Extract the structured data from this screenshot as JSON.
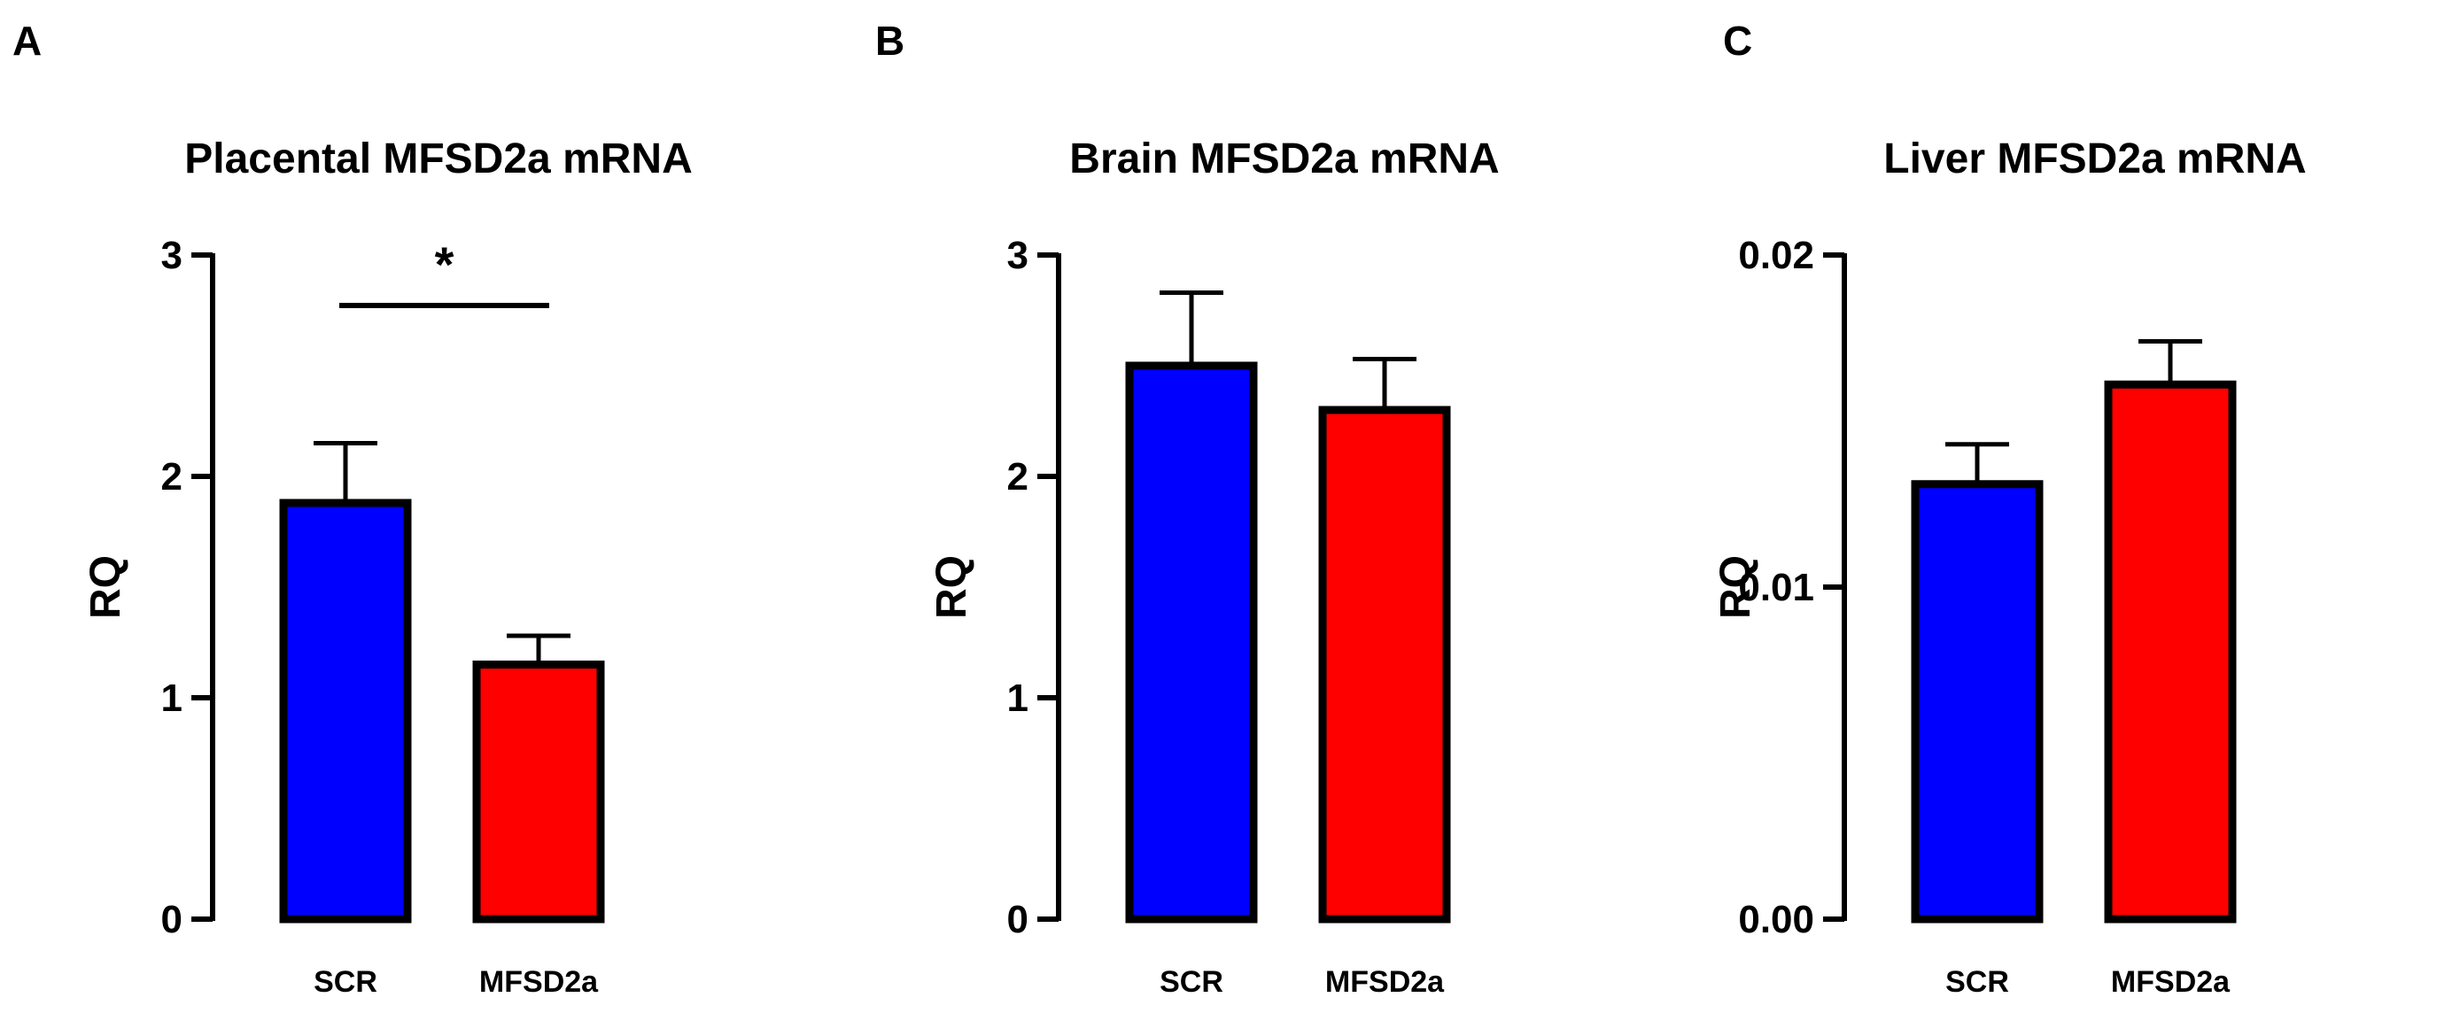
{
  "chart_data": [
    {
      "type": "bar",
      "panel": "A",
      "title": "Placental MFSD2a mRNA",
      "ylabel": "RQ",
      "xlabel": "",
      "categories": [
        "SCR",
        "MFSD2a"
      ],
      "values": [
        1.88,
        1.15
      ],
      "errors": [
        0.27,
        0.13
      ],
      "colors": [
        "#0000ff",
        "#ff0000"
      ],
      "ylim": [
        0,
        3
      ],
      "yticks": [
        0,
        1,
        2,
        3
      ],
      "ytick_labels": [
        "0",
        "1",
        "2",
        "3"
      ],
      "significance": [
        {
          "between": [
            0,
            1
          ],
          "label": "*"
        }
      ]
    },
    {
      "type": "bar",
      "panel": "B",
      "title": "Brain MFSD2a mRNA",
      "ylabel": "RQ",
      "xlabel": "",
      "categories": [
        "SCR",
        "MFSD2a"
      ],
      "values": [
        2.5,
        2.3
      ],
      "errors": [
        0.33,
        0.23
      ],
      "colors": [
        "#0000ff",
        "#ff0000"
      ],
      "ylim": [
        0,
        3
      ],
      "yticks": [
        0,
        1,
        2,
        3
      ],
      "ytick_labels": [
        "0",
        "1",
        "2",
        "3"
      ],
      "significance": []
    },
    {
      "type": "bar",
      "panel": "C",
      "title": "Liver MFSD2a mRNA",
      "ylabel": "RQ",
      "xlabel": "",
      "categories": [
        "SCR",
        "MFSD2a"
      ],
      "values": [
        0.0131,
        0.0161
      ],
      "errors": [
        0.0012,
        0.0013
      ],
      "colors": [
        "#0000ff",
        "#ff0000"
      ],
      "ylim": [
        0,
        0.02
      ],
      "yticks": [
        0,
        0.01,
        0.02
      ],
      "ytick_labels": [
        "0.00",
        "0.01",
        "0.02"
      ],
      "significance": []
    }
  ]
}
